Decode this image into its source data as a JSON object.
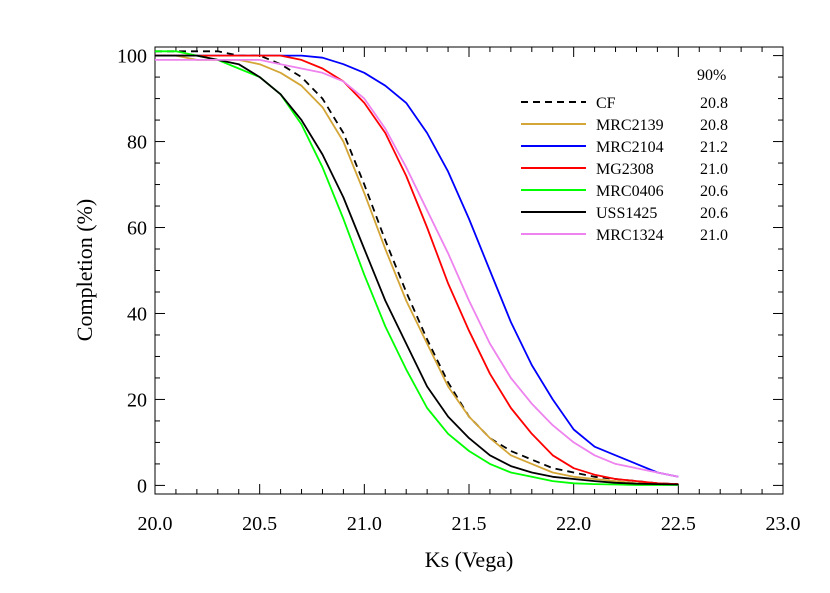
{
  "chart_data": {
    "type": "line",
    "xlabel": "Ks (Vega)",
    "ylabel": "Completion (%)",
    "xlim": [
      20.0,
      23.0
    ],
    "ylim": [
      -2,
      102
    ],
    "x_ticks": [
      "20.0",
      "20.5",
      "21.0",
      "21.5",
      "22.0",
      "22.5",
      "23.0"
    ],
    "y_ticks": [
      "0",
      "20",
      "40",
      "60",
      "80",
      "100"
    ],
    "legend_header": "90%",
    "legend_position": "top-right",
    "x": [
      20.0,
      20.1,
      20.2,
      20.3,
      20.4,
      20.5,
      20.6,
      20.7,
      20.8,
      20.9,
      21.0,
      21.1,
      21.2,
      21.3,
      21.4,
      21.5,
      21.6,
      21.7,
      21.8,
      21.9,
      22.0,
      22.1,
      22.2,
      22.3,
      22.4,
      22.5
    ],
    "series": [
      {
        "name": "CF",
        "value": "20.8",
        "color": "#000000",
        "dash": "dashed",
        "values": [
          101,
          101,
          101,
          101,
          100,
          100,
          98,
          95,
          90,
          82,
          70,
          57,
          45,
          34,
          24,
          16,
          11,
          8,
          6,
          4,
          3,
          2,
          1.5,
          1,
          0.5,
          0.3
        ]
      },
      {
        "name": "MRC2139",
        "value": "20.8",
        "color": "#d4a537",
        "dash": "solid",
        "values": [
          100,
          100,
          99,
          99,
          99,
          98,
          96,
          93,
          88,
          80,
          68,
          55,
          43,
          33,
          23,
          16,
          11,
          7,
          5,
          3,
          2,
          1.5,
          1,
          0.5,
          0.3,
          0.2
        ]
      },
      {
        "name": "MRC2104",
        "value": "21.2",
        "color": "#0000ff",
        "dash": "solid",
        "values": [
          100,
          100,
          100,
          100,
          100,
          100,
          100,
          100,
          99.5,
          98,
          96,
          93,
          89,
          82,
          73,
          62,
          50,
          38,
          28,
          20,
          13,
          9,
          7,
          5,
          3,
          2
        ]
      },
      {
        "name": "MG2308",
        "value": "21.0",
        "color": "#ff0000",
        "dash": "solid",
        "values": [
          100,
          100,
          100,
          100,
          100,
          100,
          100,
          99,
          97,
          94,
          89,
          82,
          72,
          60,
          47,
          36,
          26,
          18,
          12,
          7,
          4,
          2.5,
          1.5,
          1,
          0.5,
          0.3
        ]
      },
      {
        "name": "MRC0406",
        "value": "20.6",
        "color": "#00ff00",
        "dash": "solid",
        "values": [
          101,
          101,
          100,
          99,
          97,
          95,
          91,
          84,
          74,
          62,
          49,
          37,
          27,
          18,
          12,
          8,
          5,
          3,
          2,
          1,
          0.5,
          0.3,
          0.2,
          0.1,
          0.1,
          0.1
        ]
      },
      {
        "name": "USS1425",
        "value": "20.6",
        "color": "#000000",
        "dash": "solid",
        "values": [
          100,
          100,
          100,
          99,
          98,
          95,
          91,
          85,
          77,
          67,
          55,
          43,
          33,
          23,
          16,
          11,
          7,
          4.5,
          3,
          2,
          1.5,
          1,
          0.6,
          0.4,
          0.3,
          0.2
        ]
      },
      {
        "name": "MRC1324",
        "value": "21.0",
        "color": "#ee82ee",
        "dash": "solid",
        "values": [
          99,
          99,
          99,
          99,
          99,
          99,
          98,
          97,
          96,
          94,
          90,
          83,
          74,
          64,
          54,
          43,
          33,
          25,
          19,
          14,
          10,
          7,
          5,
          4,
          3,
          2
        ]
      }
    ]
  }
}
